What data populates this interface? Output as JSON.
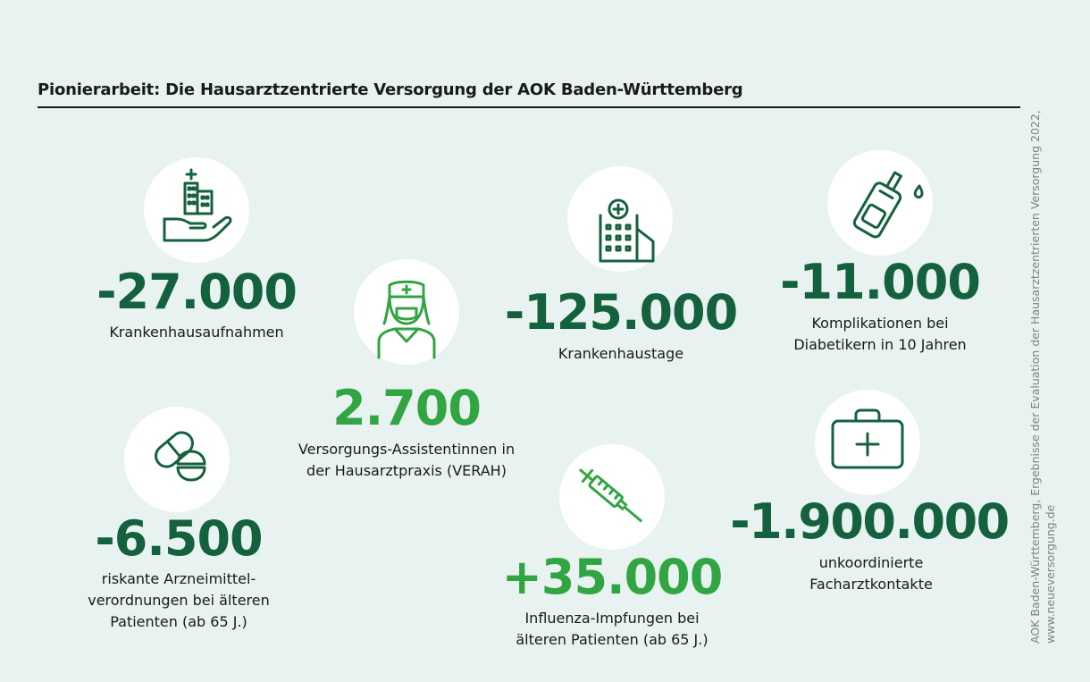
{
  "title": "Pionierarbeit: Die Hausarztzentrierte Versorgung der AOK Baden-Württemberg",
  "stats": [
    {
      "value": "-27.000",
      "label": [
        "Krankenhausaufnahmen"
      ],
      "icon": "hospital-hand-icon"
    },
    {
      "value": "2.700",
      "label": [
        "Versorgungs-Assistentinnen in",
        "der Hausarztpraxis (VERAH)"
      ],
      "icon": "nurse-icon"
    },
    {
      "value": "-125.000",
      "label": [
        "Krankenhaustage"
      ],
      "icon": "hospital-building-icon"
    },
    {
      "value": "-11.000",
      "label": [
        "Komplikationen bei",
        "Diabetikern in 10 Jahren"
      ],
      "icon": "glucose-meter-icon"
    },
    {
      "value": "-6.500",
      "label": [
        "riskante Arzneimittel-",
        "verordnungen bei älteren",
        "Patienten (ab 65 J.)"
      ],
      "icon": "pills-icon"
    },
    {
      "value": "+35.000",
      "label": [
        "Influenza-Impfungen bei",
        "älteren Patienten (ab 65 J.)"
      ],
      "icon": "syringe-icon"
    },
    {
      "value": "-1.900.000",
      "label": [
        "unkoordinierte",
        "Facharztkontakte"
      ],
      "icon": "first-aid-kit-icon"
    }
  ],
  "source": {
    "line1": "AOK Baden-Württemberg, Ergebnisse der Evaluation der Hausarztzentrierten Versorgung 2022,",
    "line2": "www.neueversorgung.de"
  },
  "colors": {
    "dark_green": "#14613e",
    "light_green": "#32a543",
    "background": "#e7f2f1"
  }
}
